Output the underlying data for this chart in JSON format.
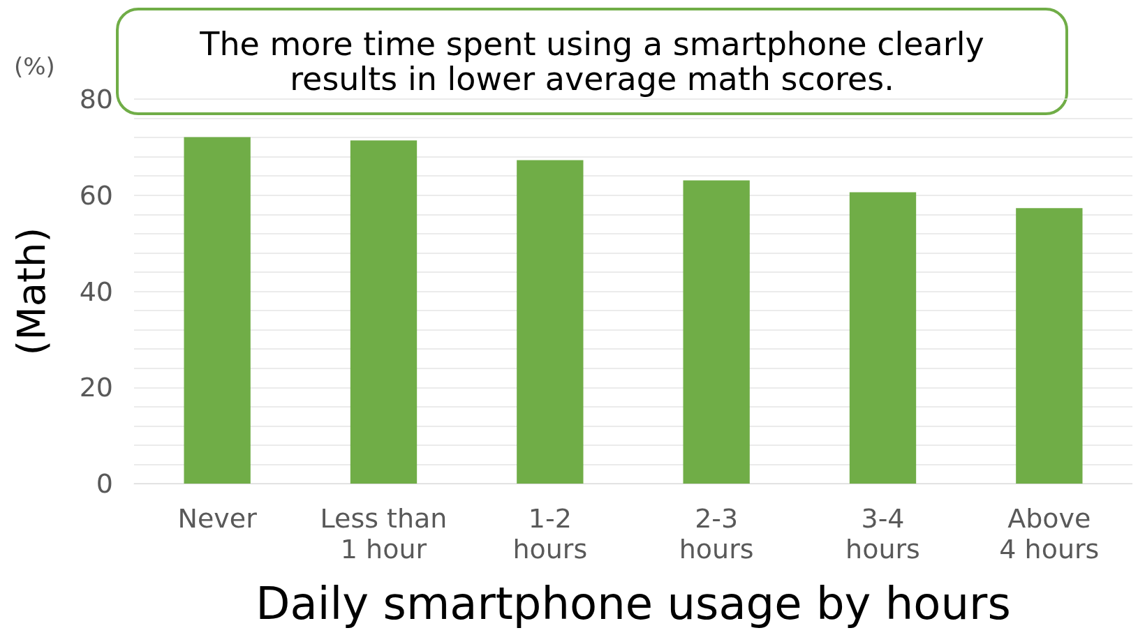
{
  "chart_data": {
    "type": "bar",
    "title": "The more time spent using a smartphone clearly\nresults in lower average math scores.",
    "xlabel": "Daily smartphone usage by hours",
    "ylabel": "(Math)",
    "annotations": [
      "(%)"
    ],
    "categories": [
      "Never",
      "Less than\n1 hour",
      "1-2\nhours",
      "2-3\nhours",
      "3-4\nhours",
      "Above\n4 hours"
    ],
    "values": [
      72.1,
      71.4,
      67.3,
      63.1,
      60.6,
      57.3
    ],
    "color": "#70ad47",
    "ylim": [
      0,
      80
    ],
    "yticks": [
      0,
      {
        "value": 4,
        "label": null
      },
      {
        "value": 8,
        "label": null
      },
      {
        "value": 12,
        "label": null
      },
      {
        "value": 16,
        "label": null
      },
      20,
      {
        "value": 24,
        "label": null
      },
      {
        "value": 28,
        "label": null
      },
      {
        "value": 32,
        "label": null
      },
      {
        "value": 36,
        "label": null
      },
      40,
      {
        "value": 44,
        "label": null
      },
      {
        "value": 48,
        "label": null
      },
      {
        "value": 52,
        "label": null
      },
      {
        "value": 56,
        "label": null
      },
      60,
      {
        "value": 64,
        "label": null
      },
      {
        "value": 68,
        "label": null
      },
      {
        "value": 72,
        "label": null
      },
      {
        "value": 76,
        "label": null
      },
      80
    ],
    "grid": "y"
  }
}
